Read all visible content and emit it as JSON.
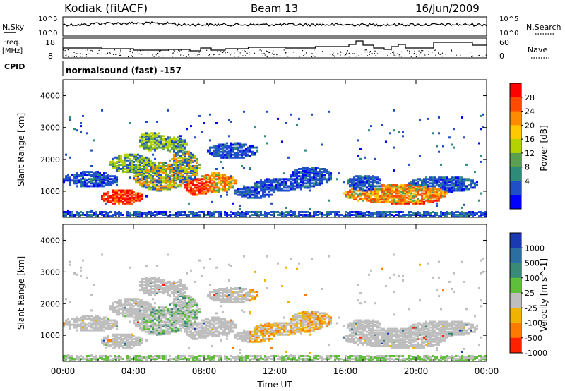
{
  "header": {
    "station": "Kodiak (fitACF)",
    "beam": "Beam 13",
    "date": "16/Jun/2009"
  },
  "top_panels": {
    "nsky_label": "N.Sky",
    "nsky_ticks": [
      "10^5",
      "10^0"
    ],
    "nsearch_label": "N.Search",
    "nsearch_ticks": [
      "10^5",
      "10^0"
    ],
    "freq_label_line1": "Freq.",
    "freq_label_line2": "[MHz]",
    "freq_ticks": [
      "18",
      "8"
    ],
    "nave_label": "Nave",
    "nave_ticks": [
      "60",
      "0"
    ],
    "cpid_label": "CPID",
    "cpid_text": "normalsound (fast) -157"
  },
  "chart_data": [
    {
      "type": "heatmap",
      "name": "power",
      "ylabel": "Slant Range [km]",
      "ylim": [
        180,
        4500
      ],
      "yticks": [
        "4000",
        "3000",
        "2000",
        "1000"
      ],
      "xlim": [
        "00:00",
        "24:00"
      ],
      "colorbar_label": "Power [dB]",
      "colorbar_ticks": [
        "28",
        "24",
        "20",
        "16",
        "12",
        "8",
        "4"
      ],
      "colorbar_colors": [
        "#ff0000",
        "#ff4a00",
        "#ff8c00",
        "#ffc800",
        "#b4d200",
        "#5aa050",
        "#2e8b7a",
        "#1f50c8",
        "#0000ff"
      ]
    },
    {
      "type": "heatmap",
      "name": "velocity",
      "ylabel": "Slant Range [km]",
      "ylim": [
        180,
        4500
      ],
      "yticks": [
        "4000",
        "3000",
        "2000",
        "1000"
      ],
      "xlim": [
        "00:00",
        "24:00"
      ],
      "xlabel": "Time UT",
      "xticks": [
        "00:00",
        "04:00",
        "08:00",
        "12:00",
        "16:00",
        "20:00",
        "00:00"
      ],
      "colorbar_label": "Velocity [m s^-1]",
      "colorbar_ticks": [
        "1000",
        "500",
        "100",
        "25",
        "-25",
        "-100",
        "-500",
        "-1000"
      ],
      "colorbar_colors": [
        "#1a3ab4",
        "#2c6ea0",
        "#3a8a78",
        "#5fbf3a",
        "#bebebe",
        "#f0b400",
        "#ff7a00",
        "#ff2000"
      ]
    }
  ]
}
